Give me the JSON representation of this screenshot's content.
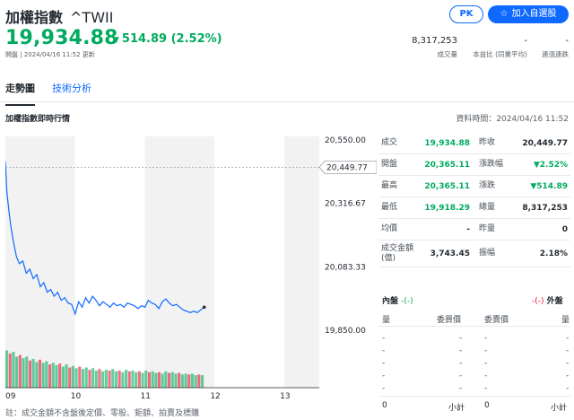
{
  "header": {
    "name": "加權指數",
    "symbol": "^TWII",
    "pk_label": "PK",
    "watch_label": "加入自選股",
    "price": "19,934.88",
    "change": "514.89 (2.52%)",
    "status": "開盤 | 2024/04/16 11:52 更新"
  },
  "stats": [
    {
      "value": "8,317,253",
      "label": "成交量"
    },
    {
      "value": "-",
      "label": "本益比 (同業平均)"
    },
    {
      "value": "-",
      "label": "連漲連跌"
    }
  ],
  "tabs": [
    {
      "label": "走勢圖",
      "active": true
    },
    {
      "label": "技術分析",
      "active": false
    }
  ],
  "section": {
    "title": "加權指數即時行情",
    "time": "資料時間：2024/04/16 11:52"
  },
  "chart_data": {
    "type": "line",
    "y_labels": [
      "20,550.00",
      "20,316.67",
      "20,083.33",
      "19,850.00"
    ],
    "ylim": [
      19850,
      20550
    ],
    "prev_close_label": "20,449.77",
    "prev_close": 20449.77,
    "x_labels": [
      "09",
      "10",
      "11",
      "12",
      "13"
    ],
    "series": [
      {
        "x": [
          9.0,
          9.02,
          9.05,
          9.08,
          9.12,
          9.16,
          9.2,
          9.25,
          9.3,
          9.35,
          9.4,
          9.45,
          9.5,
          9.55,
          9.6,
          9.65,
          9.7,
          9.75,
          9.8,
          9.85,
          9.9,
          9.95,
          10.0,
          10.05,
          10.1,
          10.15,
          10.2,
          10.25,
          10.3,
          10.35,
          10.4,
          10.45,
          10.5,
          10.55,
          10.6,
          10.65,
          10.7,
          10.75,
          10.8,
          10.85,
          10.9,
          10.95,
          11.0,
          11.05,
          11.1,
          11.15,
          11.2,
          11.25,
          11.3,
          11.35,
          11.4,
          11.45,
          11.5,
          11.55,
          11.6,
          11.65,
          11.7,
          11.75,
          11.8,
          11.85
        ],
        "values": [
          20470,
          20360,
          20290,
          20230,
          20170,
          20120,
          20095,
          20105,
          20060,
          20075,
          20040,
          20055,
          20010,
          20025,
          19990,
          20000,
          19975,
          19990,
          19960,
          19970,
          19950,
          19945,
          19910,
          19955,
          19935,
          19970,
          19950,
          19975,
          19960,
          19940,
          19955,
          19945,
          19935,
          19950,
          19940,
          19945,
          19935,
          19950,
          19945,
          19940,
          19930,
          19940,
          19935,
          19960,
          19950,
          19945,
          19930,
          19955,
          19965,
          19950,
          19940,
          19945,
          19935,
          19925,
          19920,
          19915,
          19920,
          19915,
          19925,
          19935
        ]
      }
    ],
    "volume": [
      48,
      44,
      46,
      40,
      42,
      38,
      40,
      35,
      37,
      33,
      36,
      32,
      34,
      30,
      32,
      29,
      31,
      27,
      30,
      26,
      28,
      25,
      27,
      24,
      26,
      23,
      25,
      22,
      24,
      21,
      23,
      22,
      24,
      21,
      22,
      20,
      23,
      21,
      22,
      20,
      21,
      19,
      22,
      20,
      21,
      19,
      20,
      18,
      21,
      19,
      20,
      18,
      19,
      17,
      18,
      17,
      18,
      16,
      17,
      16
    ]
  },
  "quote": {
    "rows": [
      [
        {
          "label": "成交",
          "value": "19,934.88",
          "green": true
        },
        {
          "label": "昨收",
          "value": "20,449.77",
          "green": false
        }
      ],
      [
        {
          "label": "開盤",
          "value": "20,365.11",
          "green": true
        },
        {
          "label": "漲跌幅",
          "value": "▼2.52%",
          "green": true
        }
      ],
      [
        {
          "label": "最高",
          "value": "20,365.11",
          "green": true
        },
        {
          "label": "漲跌",
          "value": "▼514.89",
          "green": true
        }
      ],
      [
        {
          "label": "最低",
          "value": "19,918.29",
          "green": true
        },
        {
          "label": "總量",
          "value": "8,317,253",
          "green": false
        }
      ],
      [
        {
          "label": "均價",
          "value": "-",
          "green": false
        },
        {
          "label": "昨量",
          "value": "0",
          "green": false
        }
      ],
      [
        {
          "label": "成交金額(億)",
          "value": "3,743.45",
          "green": false
        },
        {
          "label": "振幅",
          "value": "2.18%",
          "green": false
        }
      ]
    ]
  },
  "orderbook": {
    "bid_label": "內盤",
    "bid_value": "-(-)",
    "ask_label": "外盤",
    "ask_value": "-(-)",
    "col_qty": "量",
    "col_bid_price": "委買價",
    "col_ask_price": "委賣價",
    "col_qty2": "量",
    "dash": "-",
    "bid_total": "0",
    "subtotal": "小計",
    "ask_total": "0",
    "subtotal2": "小計"
  },
  "footnote": "註：成交金額不含盤後定價、零股、鉅額、拍賣及標購",
  "colors": {
    "accent": "#0f69ff",
    "down": "#00ab5e",
    "up": "#eb0f29",
    "line": "#0f69ff"
  }
}
